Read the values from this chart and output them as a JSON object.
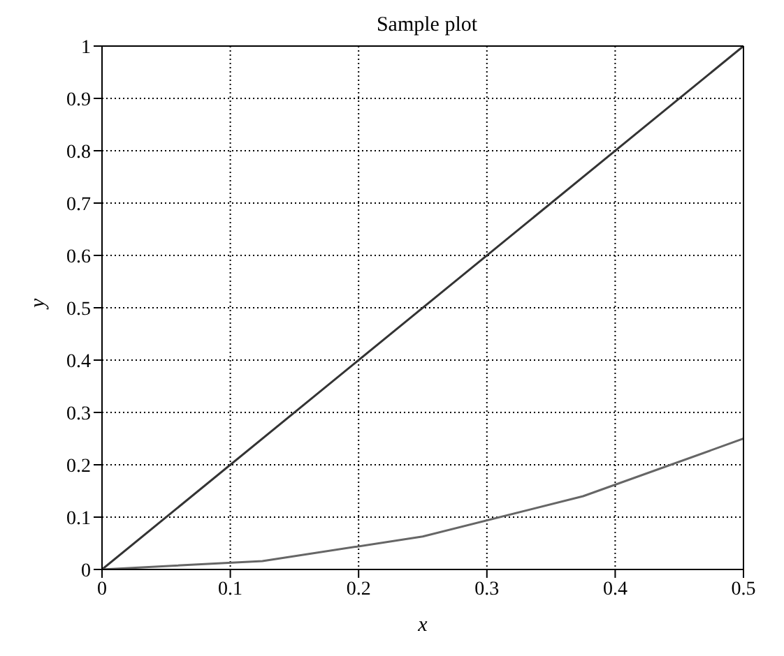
{
  "chart_data": {
    "type": "line",
    "title": "Sample plot",
    "xlabel": "x",
    "ylabel": "y",
    "series": [
      {
        "color": "#333333",
        "x": [
          0,
          0.5
        ],
        "values": [
          0,
          1
        ]
      },
      {
        "color": "#666666",
        "x": [
          0,
          0.125,
          0.25,
          0.375,
          0.5
        ],
        "values": [
          0,
          0.016,
          0.063,
          0.14,
          0.25
        ]
      }
    ],
    "xlim": [
      0,
      0.5
    ],
    "xticks": [
      0,
      0.1,
      0.2,
      0.3,
      0.4,
      0.5
    ],
    "ylim": [
      0,
      1
    ],
    "yticks": [
      0,
      0.1,
      0.2,
      0.3,
      0.4,
      0.5,
      0.6,
      0.7,
      0.8,
      0.9,
      1
    ],
    "grid": true,
    "legend": false,
    "marker": "none",
    "line_style": "solid"
  }
}
